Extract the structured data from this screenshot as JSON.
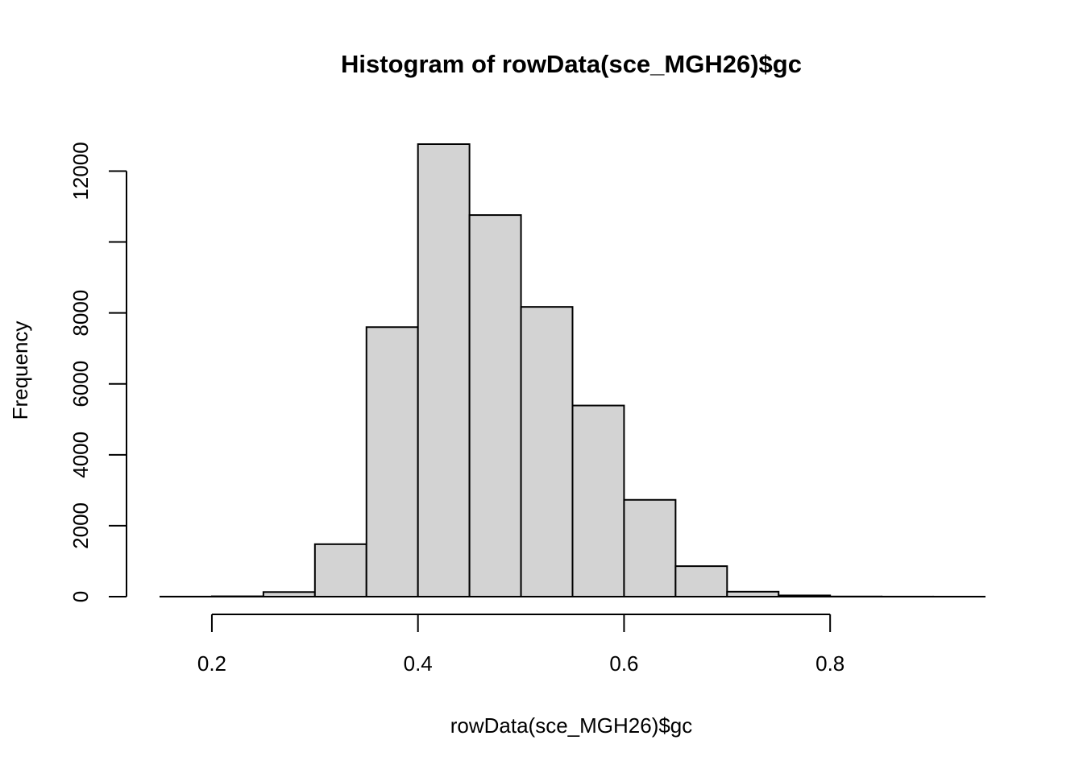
{
  "chart_data": {
    "type": "histogram",
    "title": "Histogram of rowData(sce_MGH26)$gc",
    "xlabel": "rowData(sce_MGH26)$gc",
    "ylabel": "Frequency",
    "bin_width": 0.05,
    "bins": [
      {
        "start": 0.15,
        "end": 0.2,
        "count": 2
      },
      {
        "start": 0.2,
        "end": 0.25,
        "count": 10
      },
      {
        "start": 0.25,
        "end": 0.3,
        "count": 130
      },
      {
        "start": 0.3,
        "end": 0.35,
        "count": 1480
      },
      {
        "start": 0.35,
        "end": 0.4,
        "count": 7600
      },
      {
        "start": 0.4,
        "end": 0.45,
        "count": 12760
      },
      {
        "start": 0.45,
        "end": 0.5,
        "count": 10760
      },
      {
        "start": 0.5,
        "end": 0.55,
        "count": 8170
      },
      {
        "start": 0.55,
        "end": 0.6,
        "count": 5390
      },
      {
        "start": 0.6,
        "end": 0.65,
        "count": 2730
      },
      {
        "start": 0.65,
        "end": 0.7,
        "count": 860
      },
      {
        "start": 0.7,
        "end": 0.75,
        "count": 140
      },
      {
        "start": 0.75,
        "end": 0.8,
        "count": 35
      },
      {
        "start": 0.8,
        "end": 0.85,
        "count": 5
      },
      {
        "start": 0.85,
        "end": 0.9,
        "count": 2
      },
      {
        "start": 0.9,
        "end": 0.95,
        "count": 1
      }
    ],
    "xlim": [
      0.15,
      0.95
    ],
    "ylim": [
      0,
      12760
    ],
    "x_ticks": [
      0.2,
      0.4,
      0.6,
      0.8
    ],
    "x_tick_labels": [
      "0.2",
      "0.4",
      "0.6",
      "0.8"
    ],
    "y_ticks": [
      0,
      2000,
      4000,
      6000,
      8000,
      10000,
      12000
    ],
    "y_tick_labels": [
      "0",
      "2000",
      "4000",
      "6000",
      "8000",
      "",
      "12000"
    ],
    "bar_fill": "#d3d3d3",
    "bar_stroke": "#000000",
    "grid": false,
    "legend": "none"
  }
}
